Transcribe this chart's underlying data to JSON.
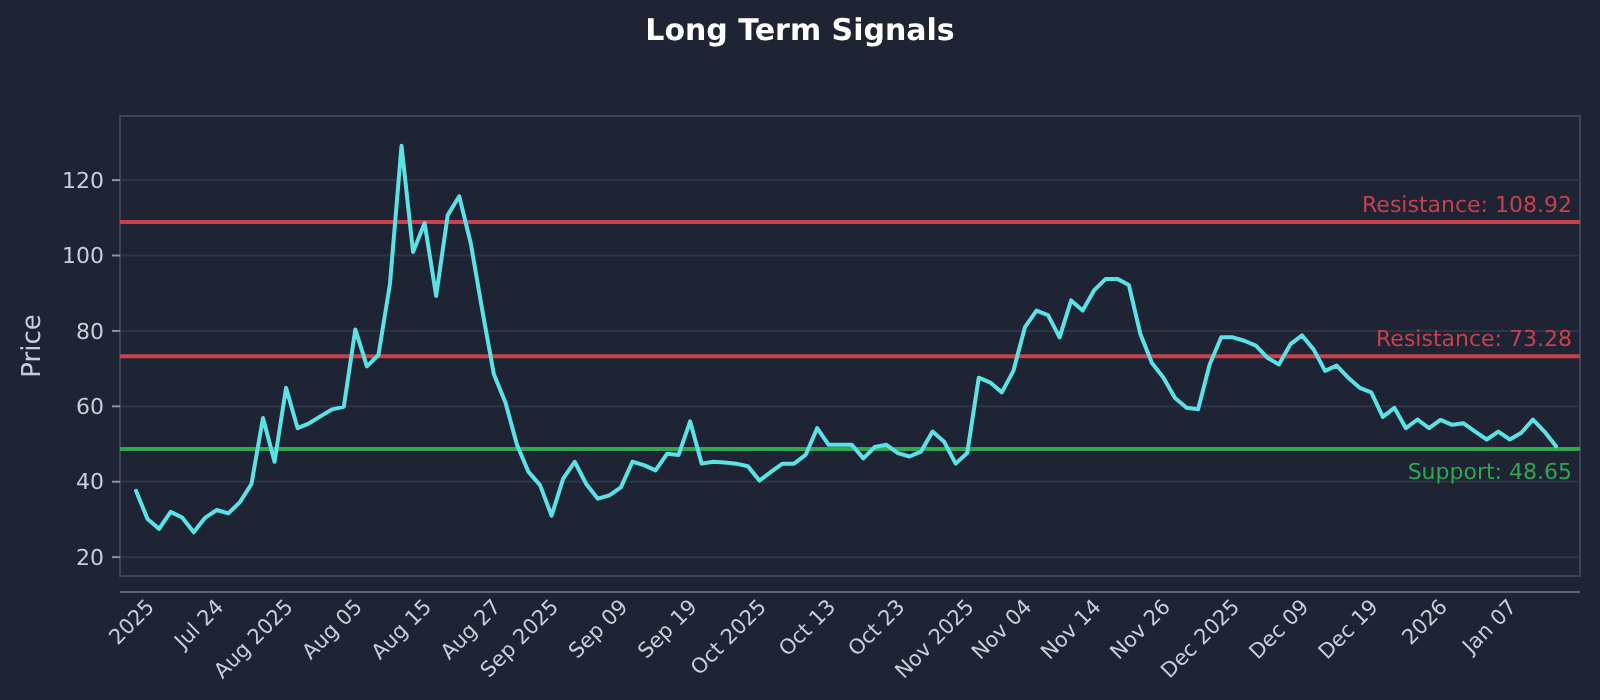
{
  "chart_data": {
    "type": "line",
    "title": "Long Term Signals",
    "ylabel": "Price",
    "categories": [
      null,
      "2025",
      null,
      null,
      null,
      null,
      null,
      "Jul 24",
      null,
      null,
      null,
      null,
      null,
      "Aug 2025",
      null,
      null,
      null,
      null,
      null,
      "Aug 05",
      null,
      null,
      null,
      null,
      null,
      "Aug 15",
      null,
      null,
      null,
      null,
      null,
      "Aug 27",
      null,
      null,
      null,
      null,
      "Sep 2025",
      null,
      null,
      null,
      null,
      null,
      "Sep 09",
      null,
      null,
      null,
      null,
      null,
      "Sep 19",
      null,
      null,
      null,
      null,
      null,
      "Oct 2025",
      null,
      null,
      null,
      null,
      null,
      "Oct 13",
      null,
      null,
      null,
      null,
      null,
      "Oct 23",
      null,
      null,
      null,
      null,
      null,
      "Nov 2025",
      null,
      null,
      null,
      null,
      "Nov 04",
      null,
      null,
      null,
      null,
      null,
      "Nov 14",
      null,
      null,
      null,
      null,
      null,
      "Nov 26",
      null,
      null,
      null,
      null,
      null,
      "Dec 2025",
      null,
      null,
      null,
      null,
      null,
      "Dec 09",
      null,
      null,
      null,
      null,
      null,
      "Dec 19",
      null,
      null,
      null,
      null,
      null,
      "2026",
      null,
      null,
      null,
      null,
      null,
      "Jan 07",
      null,
      null,
      null,
      null
    ],
    "series": [
      {
        "color": "#5ce1e6",
        "values": [
          37.6,
          30.1,
          27.5,
          32,
          30.5,
          26.6,
          30.5,
          32.5,
          31.6,
          34.6,
          39.4,
          56.9,
          45.3,
          64.9,
          54.2,
          55.5,
          57.4,
          59.2,
          59.9,
          80.4,
          70.6,
          73.6,
          92.5,
          129.1,
          100.9,
          108.6,
          89.3,
          110.7,
          115.7,
          103.2,
          85.4,
          68.5,
          61,
          49.8,
          42.6,
          39.1,
          31,
          40.8,
          45.3,
          39.4,
          35.5,
          36.4,
          38.5,
          45.3,
          44.4,
          43,
          47.4,
          47.1,
          56,
          44.8,
          45.3,
          45.1,
          44.8,
          44.1,
          40.3,
          42.6,
          44.8,
          44.8,
          47.1,
          54.2,
          49.8,
          49.8,
          49.8,
          46.2,
          49.2,
          49.8,
          47.6,
          46.7,
          48,
          53.3,
          50.6,
          44.8,
          47.6,
          67.6,
          66.3,
          63.7,
          69.4,
          81,
          85.4,
          84.2,
          78.3,
          88.1,
          85.4,
          90.8,
          93.8,
          93.8,
          92.2,
          79.2,
          71.5,
          67.6,
          62.2,
          59.6,
          59.2,
          71.1,
          78.3,
          78.3,
          77.4,
          76.1,
          72.9,
          71.1,
          76.5,
          78.8,
          75.1,
          69.4,
          70.8,
          67.6,
          64.9,
          63.7,
          57.2,
          59.6,
          54.2,
          56.5,
          54.2,
          56.4,
          55.1,
          55.5,
          53.3,
          51.2,
          53.3,
          51.2,
          53,
          56.5,
          53.3,
          49.4
        ]
      }
    ],
    "ylim": [
      15,
      137
    ],
    "yticks": [
      20,
      40,
      60,
      80,
      100,
      120
    ],
    "grid": "y",
    "line_style": "solid",
    "marker": "none",
    "ref_lines": [
      {
        "axis": "y",
        "value": 108.92,
        "label": "Resistance: 108.92",
        "color": "#c9404f"
      },
      {
        "axis": "y",
        "value": 73.28,
        "label": "Resistance: 73.28",
        "color": "#c9404f"
      },
      {
        "axis": "y",
        "value": 48.65,
        "label": "Support: 48.65",
        "color": "#2ea84f"
      }
    ]
  }
}
